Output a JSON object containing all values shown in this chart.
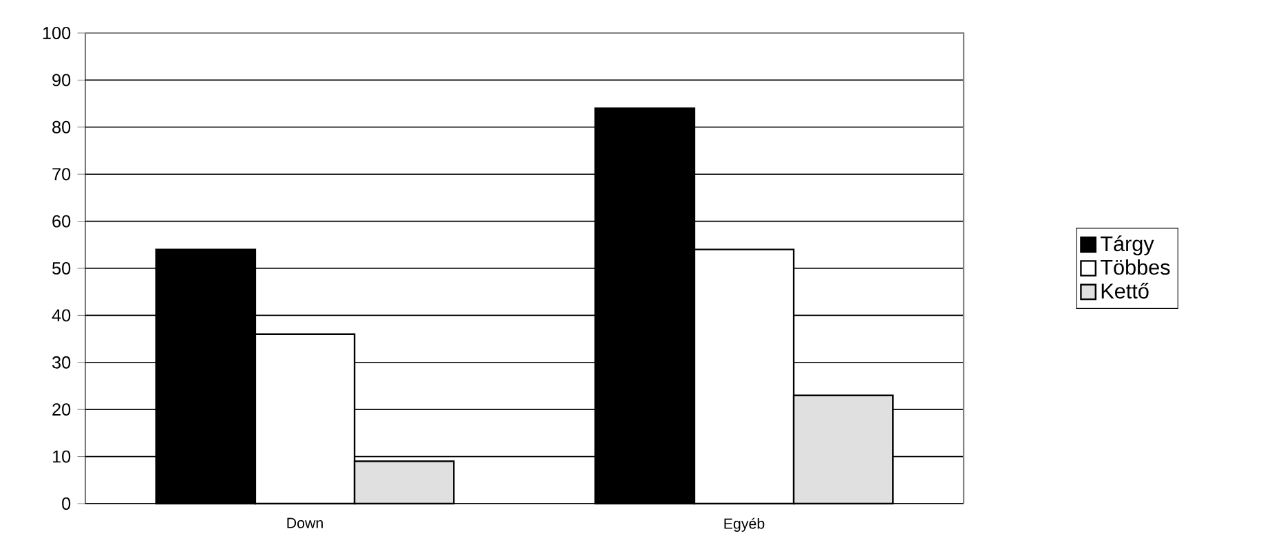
{
  "chart_data": {
    "type": "bar",
    "categories": [
      "Down",
      "Egyéb"
    ],
    "series": [
      {
        "name": "Tárgy",
        "color": "#000000",
        "values": [
          54,
          84
        ]
      },
      {
        "name": "Többes",
        "color": "#ffffff",
        "values": [
          36,
          54
        ]
      },
      {
        "name": "Kettő",
        "color": "#e0e0e0",
        "values": [
          9,
          23
        ]
      }
    ],
    "ylim": [
      0,
      100
    ],
    "yticks": [
      0,
      10,
      20,
      30,
      40,
      50,
      60,
      70,
      80,
      90,
      100
    ],
    "grid": "y",
    "legend": "right"
  }
}
